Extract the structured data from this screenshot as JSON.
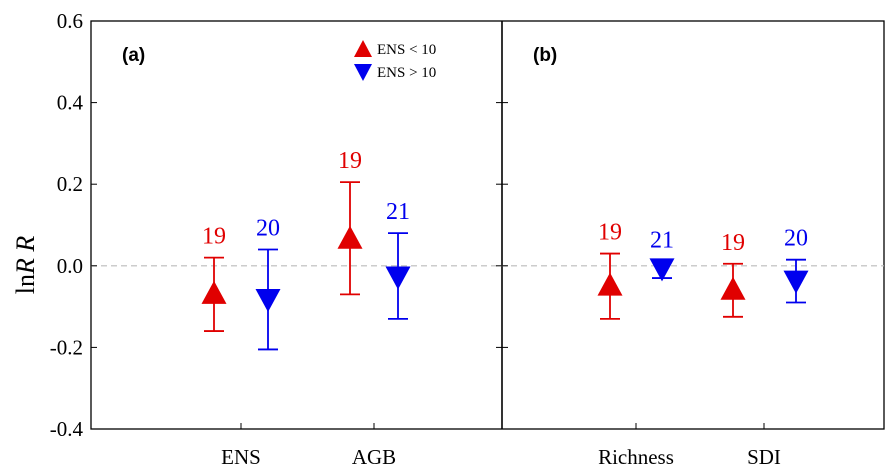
{
  "chart_data": {
    "type": "scatter",
    "ylabel_prefix": "ln",
    "ylabel_italic": "R R",
    "ylim": [
      -0.4,
      0.6
    ],
    "yticks": [
      "0.6",
      "0.4",
      "0.2",
      "0.0",
      "-0.2",
      "-0.4"
    ],
    "ytick_values": [
      0.6,
      0.4,
      0.2,
      0.0,
      -0.2,
      -0.4
    ],
    "reference_line": 0.0,
    "colors": {
      "low": "#e00000",
      "high": "#0000ee",
      "reference": "#bbbbbb"
    },
    "legend": {
      "placement": "top-center of panel (a)",
      "entries": [
        {
          "marker": "triangle-up",
          "color": "#e00000",
          "label": "ENS < 10"
        },
        {
          "marker": "triangle-down",
          "color": "#0000ee",
          "label": "ENS > 10"
        }
      ]
    },
    "panels": [
      {
        "label": "(a)",
        "categories": [
          "ENS",
          "AGB"
        ],
        "points": [
          {
            "category": "ENS",
            "group": "low",
            "mean": -0.065,
            "lower": -0.16,
            "upper": 0.02,
            "n": "19"
          },
          {
            "category": "ENS",
            "group": "high",
            "mean": -0.085,
            "lower": -0.205,
            "upper": 0.04,
            "n": "20"
          },
          {
            "category": "AGB",
            "group": "low",
            "mean": 0.07,
            "lower": -0.07,
            "upper": 0.205,
            "n": "19"
          },
          {
            "category": "AGB",
            "group": "high",
            "mean": -0.03,
            "lower": -0.13,
            "upper": 0.08,
            "n": "21"
          }
        ]
      },
      {
        "label": "(b)",
        "categories": [
          "Richness",
          "SDI"
        ],
        "points": [
          {
            "category": "Richness",
            "group": "low",
            "mean": -0.045,
            "lower": -0.13,
            "upper": 0.03,
            "n": "19"
          },
          {
            "category": "Richness",
            "group": "high",
            "mean": -0.01,
            "lower": -0.03,
            "upper": 0.01,
            "n": "21"
          },
          {
            "category": "SDI",
            "group": "low",
            "mean": -0.055,
            "lower": -0.125,
            "upper": 0.005,
            "n": "19"
          },
          {
            "category": "SDI",
            "group": "high",
            "mean": -0.04,
            "lower": -0.09,
            "upper": 0.015,
            "n": "20"
          }
        ]
      }
    ]
  }
}
